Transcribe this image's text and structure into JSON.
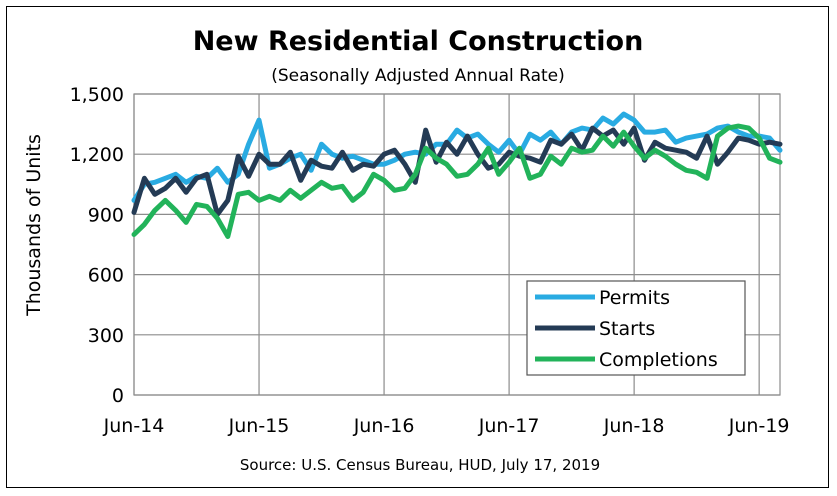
{
  "chart_data": {
    "type": "line",
    "title": "New Residential Construction",
    "subtitle": "(Seasonally Adjusted Annual Rate)",
    "ylabel": "Thousands of Units",
    "xlabel": "",
    "ylim": [
      0,
      1500
    ],
    "yticks": [
      "0",
      "300",
      "600",
      "900",
      "1,200",
      "1,500"
    ],
    "ytick_values": [
      0,
      300,
      600,
      900,
      1200,
      1500
    ],
    "xtick_labels": [
      "Jun-14",
      "Jun-15",
      "Jun-16",
      "Jun-17",
      "Jun-18",
      "Jun-19"
    ],
    "xtick_positions": [
      0,
      12,
      24,
      36,
      48,
      60
    ],
    "grid": "horizontal",
    "legend_position": "bottom-right",
    "source": "Source:  U.S. Census Bureau, HUD, July 17, 2019",
    "series": [
      {
        "name": "Permits",
        "color": "#29abe2",
        "values": [
          970,
          1050,
          1060,
          1080,
          1100,
          1060,
          1090,
          1080,
          1130,
          1060,
          1100,
          1250,
          1370,
          1130,
          1150,
          1180,
          1200,
          1120,
          1250,
          1200,
          1180,
          1190,
          1170,
          1150,
          1150,
          1170,
          1200,
          1210,
          1200,
          1250,
          1250,
          1320,
          1280,
          1300,
          1250,
          1210,
          1270,
          1200,
          1300,
          1270,
          1310,
          1250,
          1310,
          1330,
          1320,
          1380,
          1350,
          1400,
          1370,
          1310,
          1310,
          1320,
          1260,
          1280,
          1290,
          1300,
          1330,
          1340,
          1310,
          1290,
          1290,
          1280,
          1220
        ]
      },
      {
        "name": "Starts",
        "color": "#243b55",
        "values": [
          910,
          1080,
          1000,
          1030,
          1080,
          1010,
          1080,
          1100,
          900,
          970,
          1190,
          1090,
          1200,
          1150,
          1150,
          1210,
          1070,
          1170,
          1140,
          1130,
          1210,
          1120,
          1150,
          1140,
          1200,
          1220,
          1150,
          1060,
          1320,
          1160,
          1260,
          1200,
          1290,
          1200,
          1130,
          1150,
          1210,
          1190,
          1180,
          1160,
          1270,
          1250,
          1300,
          1220,
          1330,
          1290,
          1320,
          1250,
          1330,
          1170,
          1260,
          1230,
          1220,
          1210,
          1180,
          1290,
          1150,
          1210,
          1280,
          1270,
          1250,
          1260,
          1250
        ]
      },
      {
        "name": "Completions",
        "color": "#22b35a",
        "values": [
          800,
          850,
          920,
          970,
          920,
          860,
          950,
          940,
          880,
          790,
          1000,
          1010,
          970,
          990,
          970,
          1020,
          980,
          1020,
          1060,
          1030,
          1040,
          970,
          1010,
          1100,
          1070,
          1020,
          1030,
          1100,
          1230,
          1180,
          1150,
          1090,
          1100,
          1150,
          1230,
          1100,
          1160,
          1230,
          1080,
          1100,
          1190,
          1150,
          1230,
          1210,
          1220,
          1290,
          1240,
          1310,
          1240,
          1180,
          1220,
          1190,
          1150,
          1120,
          1110,
          1080,
          1290,
          1330,
          1340,
          1330,
          1280,
          1180,
          1160
        ]
      }
    ]
  }
}
